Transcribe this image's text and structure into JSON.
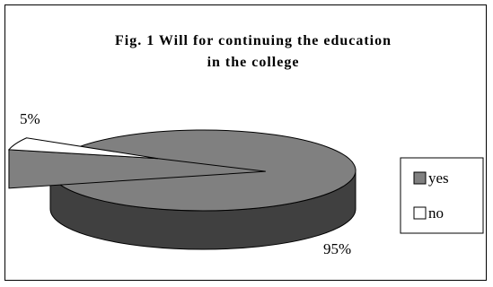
{
  "chart_data": {
    "type": "pie",
    "title_lines": [
      "Fig. 1 Will for continuing the education",
      "in the college"
    ],
    "categories": [
      "yes",
      "no"
    ],
    "values": [
      95,
      5
    ],
    "data_labels": [
      "95%",
      "5%"
    ],
    "colors": {
      "yes": "#808080",
      "no": "#ffffff"
    },
    "style": "3d-exploded",
    "legend_position": "right"
  }
}
